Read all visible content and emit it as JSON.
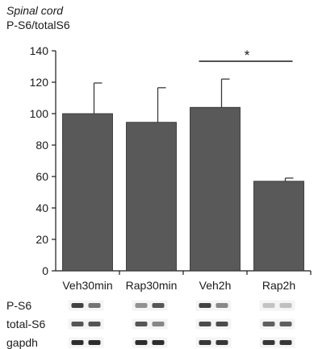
{
  "chart_data": {
    "type": "bar",
    "title": "Spinal cord",
    "ylabel": "P-S6/totalS6",
    "categories": [
      "Veh30min",
      "Rap30min",
      "Veh2h",
      "Rap2h"
    ],
    "values": [
      100,
      94.5,
      104,
      57
    ],
    "errors": [
      19.5,
      22,
      18,
      2
    ],
    "ylim": [
      0,
      140
    ],
    "yticks": [
      "0",
      "20",
      "40",
      "60",
      "80",
      "100",
      "120",
      "140"
    ],
    "bar_color": "#595959",
    "grid": false,
    "significance": {
      "between": [
        2,
        3
      ],
      "label": "*"
    }
  },
  "blots": {
    "rows": [
      {
        "label": "P-S6",
        "intensity": [
          [
            0.85,
            0.6
          ],
          [
            0.45,
            0.75
          ],
          [
            0.85,
            0.5
          ],
          [
            0.2,
            0.22
          ]
        ]
      },
      {
        "label": "total-S6",
        "intensity": [
          [
            0.75,
            0.75
          ],
          [
            0.75,
            0.5
          ],
          [
            0.8,
            0.8
          ],
          [
            0.7,
            0.7
          ]
        ]
      },
      {
        "label": "gapdh",
        "intensity": [
          [
            0.95,
            0.95
          ],
          [
            0.95,
            0.95
          ],
          [
            0.9,
            0.9
          ],
          [
            0.9,
            0.9
          ]
        ]
      }
    ]
  }
}
